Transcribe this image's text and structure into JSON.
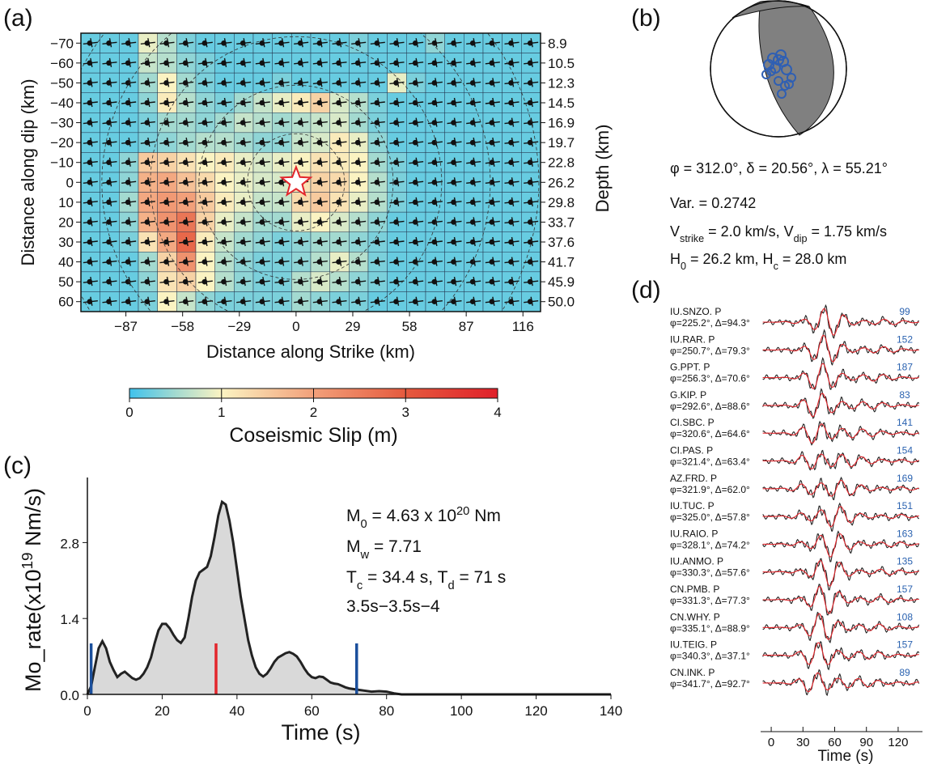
{
  "chart_data": [
    {
      "type": "heatmap",
      "panel": "(a)",
      "xlabel": "Distance along Strike (km)",
      "ylabel": "Distance along dip (km)",
      "y2label": "Depth (km)",
      "xlim": [
        -110,
        125
      ],
      "ylim": [
        -75,
        65
      ],
      "xticks": [
        {
          "value": -87,
          "label": "−87"
        },
        {
          "value": -58,
          "label": "−58"
        },
        {
          "value": -29,
          "label": "−29"
        },
        0,
        29,
        58,
        87,
        116
      ],
      "yticks": [
        {
          "value": -70,
          "label": "−70"
        },
        {
          "value": -60,
          "label": "−60"
        },
        {
          "value": -50,
          "label": "−50"
        },
        {
          "value": -40,
          "label": "−40"
        },
        {
          "value": -30,
          "label": "−30"
        },
        {
          "value": -20,
          "label": "−20"
        },
        {
          "value": -10,
          "label": "−10"
        },
        0,
        10,
        20,
        30,
        40,
        50,
        60
      ],
      "y2ticks": [
        8.9,
        10.5,
        12.3,
        14.5,
        16.9,
        19.7,
        22.8,
        26.2,
        29.8,
        33.7,
        37.6,
        41.7,
        45.9,
        {
          "value": 50.0,
          "label": "50.0"
        }
      ],
      "z": [
        [
          0.2,
          0.2,
          0.2,
          0.9,
          0.6,
          0.3,
          0.2,
          0.2,
          0.2,
          0.2,
          0.2,
          0.2,
          0.2,
          0.2,
          0.3,
          0.2,
          0.2,
          0.2,
          0.4,
          0.2,
          0.2,
          0.2,
          0.2,
          0.2
        ],
        [
          0.2,
          0.2,
          0.2,
          0.7,
          0.6,
          0.4,
          0.3,
          0.2,
          0.2,
          0.2,
          0.2,
          0.2,
          0.2,
          0.2,
          0.2,
          0.2,
          0.2,
          0.2,
          0.2,
          0.2,
          0.2,
          0.2,
          0.2,
          0.2
        ],
        [
          0.2,
          0.2,
          0.2,
          0.5,
          1.0,
          0.5,
          0.3,
          0.2,
          0.2,
          0.2,
          0.3,
          0.2,
          0.2,
          0.2,
          0.2,
          0.2,
          0.9,
          0.3,
          0.2,
          0.2,
          0.2,
          0.2,
          0.2,
          0.2
        ],
        [
          0.2,
          0.2,
          0.2,
          0.4,
          1.1,
          0.6,
          0.4,
          0.3,
          0.5,
          0.7,
          0.9,
          1.1,
          1.4,
          0.8,
          0.6,
          0.3,
          0.2,
          0.2,
          0.2,
          0.2,
          0.2,
          0.2,
          0.2,
          0.2
        ],
        [
          0.2,
          0.2,
          0.2,
          0.3,
          0.5,
          0.5,
          0.4,
          0.5,
          0.7,
          0.6,
          0.5,
          0.6,
          0.7,
          0.8,
          0.5,
          0.3,
          0.2,
          0.2,
          0.2,
          0.2,
          0.2,
          0.2,
          0.2,
          0.2
        ],
        [
          0.2,
          0.2,
          0.2,
          0.3,
          0.4,
          0.5,
          0.6,
          0.6,
          0.5,
          0.4,
          0.4,
          0.7,
          0.8,
          1.1,
          0.9,
          0.4,
          0.2,
          0.2,
          0.2,
          0.2,
          0.2,
          0.2,
          0.2,
          0.2
        ],
        [
          0.2,
          0.2,
          0.4,
          1.5,
          1.4,
          1.2,
          1.0,
          1.1,
          0.9,
          0.8,
          0.9,
          1.0,
          1.2,
          1.1,
          1.0,
          0.5,
          0.3,
          0.2,
          0.2,
          0.2,
          0.2,
          0.2,
          0.2,
          0.2
        ],
        [
          0.2,
          0.2,
          0.4,
          1.8,
          1.9,
          1.6,
          1.3,
          1.0,
          0.9,
          0.8,
          0.8,
          1.2,
          1.4,
          1.3,
          1.0,
          0.6,
          0.3,
          0.2,
          0.2,
          0.2,
          0.2,
          0.2,
          0.2,
          0.2
        ],
        [
          0.2,
          0.2,
          0.5,
          1.9,
          2.1,
          2.0,
          1.5,
          1.1,
          0.9,
          0.7,
          0.7,
          1.3,
          1.5,
          1.2,
          0.9,
          0.6,
          0.3,
          0.2,
          0.2,
          0.2,
          0.2,
          0.2,
          0.2,
          0.2
        ],
        [
          0.2,
          0.2,
          0.4,
          1.8,
          2.2,
          2.6,
          1.4,
          0.9,
          0.7,
          0.5,
          0.5,
          0.9,
          1.0,
          0.8,
          0.6,
          0.4,
          0.2,
          0.2,
          0.2,
          0.2,
          0.2,
          0.2,
          0.2,
          0.2
        ],
        [
          0.2,
          0.2,
          0.3,
          1.2,
          1.9,
          2.8,
          1.1,
          0.7,
          0.5,
          0.4,
          0.3,
          0.4,
          0.5,
          0.5,
          0.4,
          0.3,
          0.2,
          0.2,
          0.2,
          0.2,
          0.2,
          0.2,
          0.2,
          0.2
        ],
        [
          0.2,
          0.2,
          0.2,
          0.5,
          1.4,
          2.2,
          1.0,
          0.6,
          0.4,
          0.3,
          0.3,
          0.4,
          0.6,
          0.9,
          0.6,
          0.3,
          0.2,
          0.2,
          0.2,
          0.2,
          0.2,
          0.2,
          0.2,
          0.2
        ],
        [
          0.2,
          0.2,
          0.2,
          0.4,
          1.2,
          1.4,
          1.0,
          0.6,
          0.4,
          0.3,
          0.3,
          0.6,
          0.8,
          0.6,
          0.4,
          0.3,
          0.2,
          0.2,
          0.2,
          0.2,
          0.2,
          0.2,
          0.2,
          0.2
        ],
        [
          0.2,
          0.2,
          0.2,
          0.3,
          1.0,
          0.7,
          0.4,
          0.3,
          0.3,
          0.3,
          0.3,
          0.5,
          0.4,
          0.3,
          0.3,
          0.2,
          0.2,
          0.2,
          0.2,
          0.2,
          0.2,
          0.2,
          0.2,
          0.2
        ]
      ],
      "colorscale": [
        [
          0,
          "#3fc2ec"
        ],
        [
          0.5,
          "#a3dad0"
        ],
        [
          1,
          "#fbf3c2"
        ],
        [
          2,
          "#f2a07a"
        ],
        [
          3,
          "#e55a3e"
        ],
        [
          4,
          "#e0202a"
        ]
      ],
      "colorbar": {
        "label": "Coseismic Slip (m)",
        "lim": [
          0,
          4
        ],
        "ticks": [
          0,
          1,
          2,
          3,
          4
        ]
      },
      "hypocenter": {
        "x": 0,
        "y": 0
      }
    },
    {
      "type": "beachball",
      "panel": "(b)",
      "annotations": [
        {
          "parts": [
            {
              "text": "φ = 312.0°, δ = 20.56°, λ =  55.21°"
            }
          ]
        },
        {
          "parts": [
            {
              "text": "Var. = 0.2742"
            }
          ]
        },
        {
          "parts": [
            {
              "text": "V"
            },
            {
              "text": "strike",
              "sub": true
            },
            {
              "text": " = 2.0 km/s, V"
            },
            {
              "text": "dip",
              "sub": true
            },
            {
              "text": " = 1.75 km/s"
            }
          ]
        },
        {
          "parts": [
            {
              "text": "H"
            },
            {
              "text": "0",
              "sub": true
            },
            {
              "text": " = 26.2 km, H"
            },
            {
              "text": "c",
              "sub": true
            },
            {
              "text": " = 28.0 km"
            }
          ]
        }
      ]
    },
    {
      "type": "area",
      "panel": "(c)",
      "xlabel": "Time (s)",
      "ylabel": {
        "parts": [
          {
            "text": "Mo_rate(x10"
          },
          {
            "text": "19",
            "sup": true
          },
          {
            "text": " Nm/s)"
          }
        ]
      },
      "x": [
        0,
        1,
        2,
        3,
        4,
        5,
        6,
        7,
        8,
        9,
        10,
        11,
        12,
        13,
        14,
        15,
        16,
        17,
        18,
        19,
        20,
        21,
        22,
        23,
        24,
        25,
        26,
        27,
        28,
        29,
        30,
        31,
        32,
        33,
        34,
        35,
        36,
        37,
        38,
        39,
        40,
        41,
        42,
        43,
        44,
        45,
        46,
        47,
        48,
        49,
        50,
        51,
        52,
        53,
        54,
        55,
        56,
        57,
        58,
        59,
        60,
        61,
        62,
        63,
        64,
        65,
        66,
        67,
        68,
        69,
        70,
        72,
        74,
        76,
        78,
        80,
        82,
        84,
        100,
        120,
        140
      ],
      "values": [
        0,
        0.15,
        0.5,
        0.85,
        0.98,
        0.85,
        0.6,
        0.45,
        0.32,
        0.38,
        0.42,
        0.36,
        0.3,
        0.27,
        0.3,
        0.38,
        0.5,
        0.68,
        0.95,
        1.18,
        1.3,
        1.3,
        1.22,
        1.1,
        1.0,
        0.95,
        1.05,
        1.4,
        1.8,
        2.1,
        2.25,
        2.3,
        2.35,
        2.55,
        2.9,
        3.3,
        3.55,
        3.5,
        3.2,
        2.8,
        2.3,
        1.8,
        1.4,
        1.0,
        0.72,
        0.5,
        0.38,
        0.33,
        0.38,
        0.48,
        0.6,
        0.68,
        0.72,
        0.76,
        0.78,
        0.75,
        0.7,
        0.6,
        0.48,
        0.38,
        0.32,
        0.3,
        0.33,
        0.32,
        0.27,
        0.22,
        0.2,
        0.19,
        0.16,
        0.13,
        0.11,
        0.09,
        0.07,
        0.05,
        0.06,
        0.05,
        0.02,
        0,
        0,
        0,
        0
      ],
      "color": "#d9d9d9",
      "line_color": "#222222",
      "xlim": [
        0,
        140
      ],
      "ylim": [
        0,
        4.0
      ],
      "xticks": [
        0,
        20,
        40,
        60,
        80,
        100,
        120,
        140
      ],
      "yticks": [
        {
          "value": 0,
          "label": "0.0"
        },
        1.4,
        2.8
      ],
      "markers": [
        {
          "x": 1,
          "color": "#1b4f9c"
        },
        {
          "x": 34.4,
          "color": "#e3262c"
        },
        {
          "x": 72,
          "color": "#1b4f9c"
        }
      ],
      "annotations": [
        {
          "parts": [
            {
              "text": "M"
            },
            {
              "text": "0",
              "sub": true
            },
            {
              "text": " = 4.63 x 10"
            },
            {
              "text": "20",
              "sup": true
            },
            {
              "text": " Nm"
            }
          ]
        },
        {
          "parts": [
            {
              "text": "M"
            },
            {
              "text": "w",
              "sub": true
            },
            {
              "text": " = 7.71"
            }
          ]
        },
        {
          "parts": [
            {
              "text": "T"
            },
            {
              "text": "c",
              "sub": true
            },
            {
              "text": " = 34.4 s, T"
            },
            {
              "text": "d",
              "sub": true
            },
            {
              "text": " = 71 s"
            }
          ]
        },
        {
          "parts": [
            {
              "text": "3.5s−3.5s−4"
            }
          ]
        }
      ]
    },
    {
      "type": "waveforms",
      "panel": "(d)",
      "xlabel": "Time (s)",
      "xlim": [
        -10,
        143
      ],
      "xticks": [
        0,
        30,
        60,
        90,
        120
      ],
      "observed_color": "#222222",
      "synthetic_color": "#e3262c",
      "amplitude_color": "#2a62b0",
      "stations": [
        {
          "name": "IU.SNZO. P",
          "info": "φ=225.2°, Δ=94.3°",
          "amplitude": 99
        },
        {
          "name": "IU.RAR. P",
          "info": "φ=250.7°, Δ=79.3°",
          "amplitude": 152
        },
        {
          "name": "G.PPT. P",
          "info": "φ=256.3°, Δ=70.6°",
          "amplitude": 187
        },
        {
          "name": "G.KIP. P",
          "info": "φ=292.6°, Δ=88.6°",
          "amplitude": 83
        },
        {
          "name": "CI.SBC. P",
          "info": "φ=320.6°, Δ=64.6°",
          "amplitude": 141
        },
        {
          "name": "CI.PAS. P",
          "info": "φ=321.4°, Δ=63.4°",
          "amplitude": 154
        },
        {
          "name": "AZ.FRD. P",
          "info": "φ=321.9°, Δ=62.0°",
          "amplitude": 169
        },
        {
          "name": "IU.TUC. P",
          "info": "φ=325.0°, Δ=57.8°",
          "amplitude": 151
        },
        {
          "name": "IU.RAIO. P",
          "info": "φ=328.1°, Δ=74.2°",
          "amplitude": 163
        },
        {
          "name": "IU.ANMO. P",
          "info": "φ=330.3°, Δ=57.6°",
          "amplitude": 135
        },
        {
          "name": "CN.PMB. P",
          "info": "φ=331.3°, Δ=77.3°",
          "amplitude": 157
        },
        {
          "name": "CN.WHY. P",
          "info": "φ=335.1°, Δ=88.9°",
          "amplitude": 108
        },
        {
          "name": "IU.TEIG. P",
          "info": "φ=340.3°, Δ=37.1°",
          "amplitude": 157
        },
        {
          "name": "CN.INK. P",
          "info": "φ=341.7°, Δ=92.7°",
          "amplitude": 89
        }
      ]
    }
  ]
}
